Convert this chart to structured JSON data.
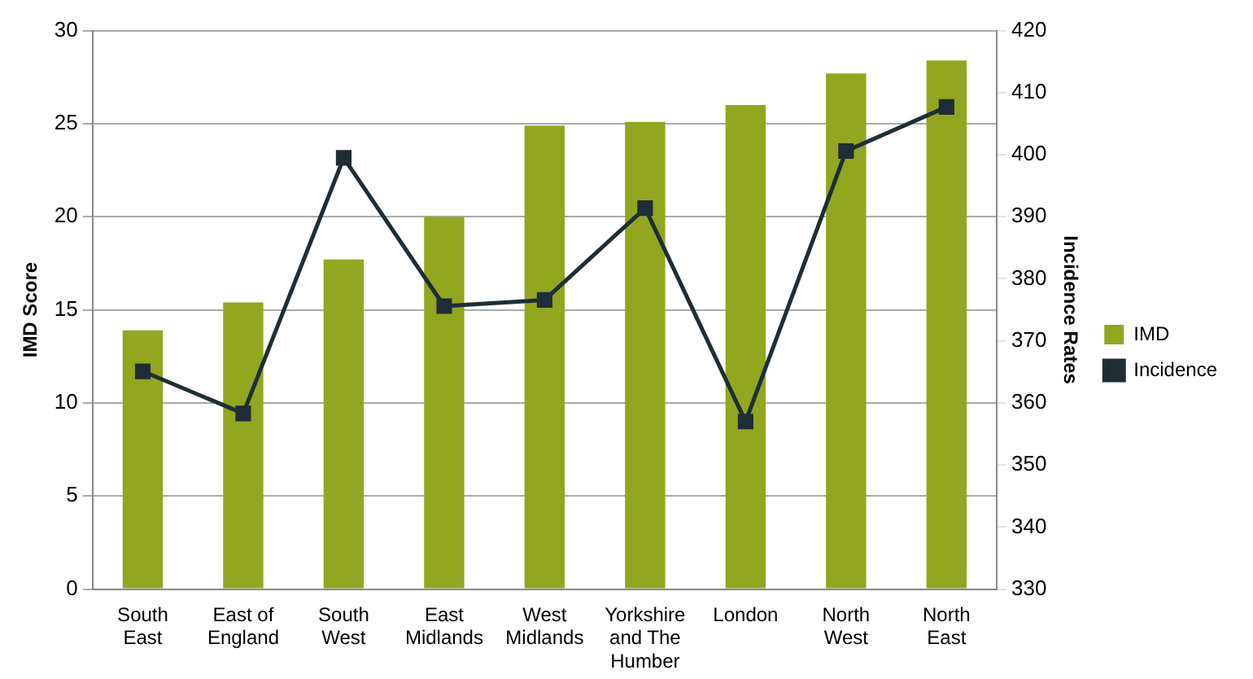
{
  "chart_data": {
    "type": "bar",
    "categories": [
      "South East",
      "East of England",
      "South West",
      "East Midlands",
      "West Midlands",
      "Yorkshire and The Humber",
      "London",
      "North West",
      "North East"
    ],
    "series": [
      {
        "name": "IMD",
        "color": "#93a61f",
        "values": [
          13.9,
          15.4,
          17.7,
          20.0,
          24.9,
          25.1,
          26.0,
          27.7,
          28.4
        ]
      },
      {
        "name": "Incidence",
        "type": "line",
        "axis": "y2",
        "color": "#1f2d36",
        "values": [
          365.1,
          358.3,
          399.5,
          375.6,
          376.6,
          391.4,
          357.0,
          400.6,
          407.7
        ]
      }
    ],
    "ylabel": "IMD Score",
    "y2label": "Incidence Rates",
    "ylim": [
      0,
      30
    ],
    "yticks": [
      0,
      5,
      10,
      15,
      20,
      25,
      30
    ],
    "y2lim": [
      330,
      420
    ],
    "y2ticks": [
      330,
      340,
      350,
      360,
      370,
      380,
      390,
      400,
      410,
      420
    ],
    "grid": "y",
    "legend": "right",
    "marker": "square",
    "line_style": "solid"
  }
}
